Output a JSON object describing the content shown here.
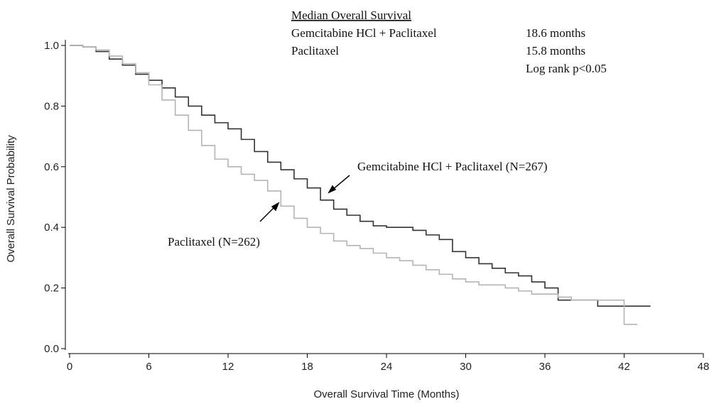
{
  "chart_data": {
    "type": "step",
    "x_label": "Overall Survival Time (Months)",
    "y_label": "Overall Survival Probability",
    "x": [
      0,
      1,
      2,
      3,
      4,
      5,
      6,
      7,
      8,
      9,
      10,
      11,
      12,
      13,
      14,
      15,
      16,
      17,
      18,
      19,
      20,
      21,
      22,
      23,
      24,
      25,
      26,
      27,
      28,
      29,
      30,
      31,
      32,
      33,
      34,
      35,
      36,
      37,
      38,
      39,
      40,
      41,
      42,
      43,
      44
    ],
    "series": [
      {
        "name": "Gemcitabine HCl + Paclitaxel (N=267)",
        "color": "#333333",
        "values": [
          1.0,
          0.995,
          0.98,
          0.955,
          0.935,
          0.905,
          0.885,
          0.86,
          0.83,
          0.8,
          0.77,
          0.745,
          0.725,
          0.69,
          0.65,
          0.615,
          0.59,
          0.56,
          0.53,
          0.49,
          0.46,
          0.44,
          0.42,
          0.405,
          0.4,
          0.4,
          0.39,
          0.375,
          0.36,
          0.32,
          0.3,
          0.28,
          0.265,
          0.25,
          0.24,
          0.22,
          0.2,
          0.16,
          0.16,
          0.16,
          0.14,
          0.14,
          0.14,
          0.14,
          0.14
        ]
      },
      {
        "name": "Paclitaxel (N=262)",
        "color": "#b4b4b4",
        "values": [
          1.0,
          0.995,
          0.985,
          0.965,
          0.94,
          0.91,
          0.87,
          0.82,
          0.77,
          0.72,
          0.67,
          0.625,
          0.6,
          0.575,
          0.555,
          0.52,
          0.47,
          0.43,
          0.4,
          0.38,
          0.355,
          0.34,
          0.33,
          0.315,
          0.3,
          0.29,
          0.275,
          0.26,
          0.245,
          0.23,
          0.22,
          0.21,
          0.21,
          0.2,
          0.19,
          0.18,
          0.18,
          0.17,
          0.16,
          0.16,
          0.16,
          0.16,
          0.08,
          0.08,
          null
        ]
      }
    ],
    "xlim": [
      0,
      48
    ],
    "xticks": [
      0,
      6,
      12,
      18,
      24,
      30,
      36,
      42,
      48
    ],
    "ylim": [
      0,
      1
    ],
    "yticks": [
      {
        "value": 0,
        "label": "0.0"
      },
      {
        "value": 0.2,
        "label": "0.2"
      },
      {
        "value": 0.4,
        "label": "0.4"
      },
      {
        "value": 0.6,
        "label": "0.6"
      },
      {
        "value": 0.8,
        "label": "0.8"
      },
      {
        "value": 1,
        "label": "1.0"
      }
    ],
    "annotation_box": {
      "title": "Median Overall Survival",
      "rows": [
        [
          "Gemcitabine HCl + Paclitaxel",
          "18.6 months"
        ],
        [
          "Paclitaxel",
          "15.8 months"
        ]
      ],
      "note": "Log rank p<0.05"
    }
  }
}
